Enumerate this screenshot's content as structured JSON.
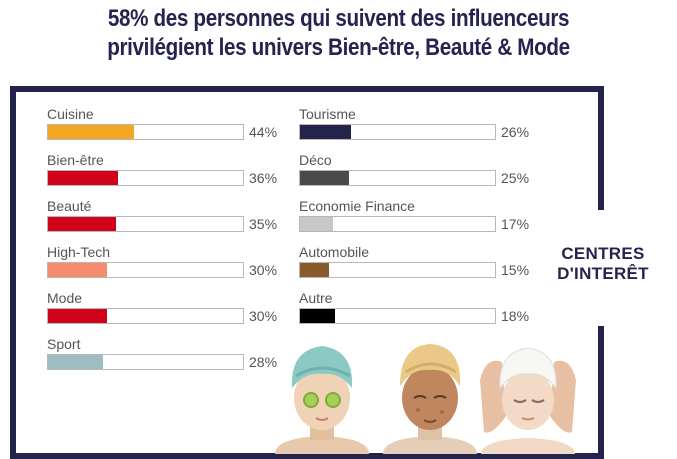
{
  "title": {
    "line1": "58% des personnes qui suivent des influenceurs",
    "line2": "privilégient les univers Bien-être, Beauté & Mode"
  },
  "side_label": {
    "line1": "CENTRES",
    "line2": "D'INTERÊT"
  },
  "chart_data": {
    "type": "bar",
    "orientation": "horizontal",
    "xlim": [
      0,
      100
    ],
    "columns": [
      {
        "items": [
          {
            "category": "Cuisine",
            "value": 44,
            "value_label": "44%",
            "color": "#f5a623"
          },
          {
            "category": "Bien-être",
            "value": 36,
            "value_label": "36%",
            "color": "#d0021b"
          },
          {
            "category": "Beauté",
            "value": 35,
            "value_label": "35%",
            "color": "#d0021b"
          },
          {
            "category": "High-Tech",
            "value": 30,
            "value_label": "30%",
            "color": "#f78b6e"
          },
          {
            "category": "Mode",
            "value": 30,
            "value_label": "30%",
            "color": "#d0021b"
          },
          {
            "category": "Sport",
            "value": 28,
            "value_label": "28%",
            "color": "#9fbcc2"
          }
        ]
      },
      {
        "items": [
          {
            "category": "Tourisme",
            "value": 26,
            "value_label": "26%",
            "color": "#23234b"
          },
          {
            "category": "Déco",
            "value": 25,
            "value_label": "25%",
            "color": "#4a4a4a"
          },
          {
            "category": "Economie Finance",
            "value": 17,
            "value_label": "17%",
            "color": "#c8c8c8"
          },
          {
            "category": "Automobile",
            "value": 15,
            "value_label": "15%",
            "color": "#8b5a2b"
          },
          {
            "category": "Autre",
            "value": 18,
            "value_label": "18%",
            "color": "#000000"
          }
        ]
      }
    ]
  },
  "illustration": {
    "icon": "women-spa-beauty-icon"
  },
  "colors": {
    "title": "#25244f",
    "frame": "#23234b",
    "track_border": "#b8b8b8",
    "text": "#555555"
  }
}
